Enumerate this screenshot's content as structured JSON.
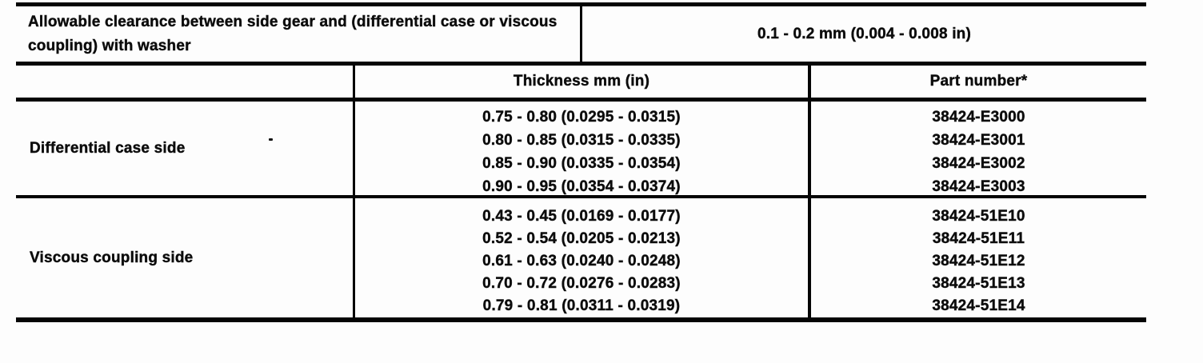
{
  "clearance": {
    "label": "Allowable clearance between side gear and (differential case or viscous coupling) with washer",
    "value": "0.1 - 0.2 mm (0.004 - 0.008 in)"
  },
  "washer_table": {
    "header": {
      "side": "",
      "thickness": "Thickness mm (in)",
      "part_number": "Part number*"
    },
    "rows": [
      {
        "side": "Differential case side",
        "thicknesses": [
          "0.75 - 0.80 (0.0295 - 0.0315)",
          "0.80 - 0.85 (0.0315 - 0.0335)",
          "0.85 - 0.90 (0.0335 - 0.0354)",
          "0.90 - 0.95 (0.0354 - 0.0374)"
        ],
        "part_numbers": [
          "38424-E3000",
          "38424-E3001",
          "38424-E3002",
          "38424-E3003"
        ]
      },
      {
        "side": "Viscous coupling side",
        "thicknesses": [
          "0.43 - 0.45 (0.0169 - 0.0177)",
          "0.52 - 0.54 (0.0205 - 0.0213)",
          "0.61 - 0.63 (0.0240 - 0.0248)",
          "0.70 - 0.72 (0.0276 - 0.0283)",
          "0.79 - 0.81 (0.0311 - 0.0319)"
        ],
        "part_numbers": [
          "38424-51E10",
          "38424-51E11",
          "38424-51E12",
          "38424-51E13",
          "38424-51E14"
        ]
      }
    ]
  },
  "colors": {
    "ink": "#050505",
    "paper": "#fdfdfd"
  }
}
